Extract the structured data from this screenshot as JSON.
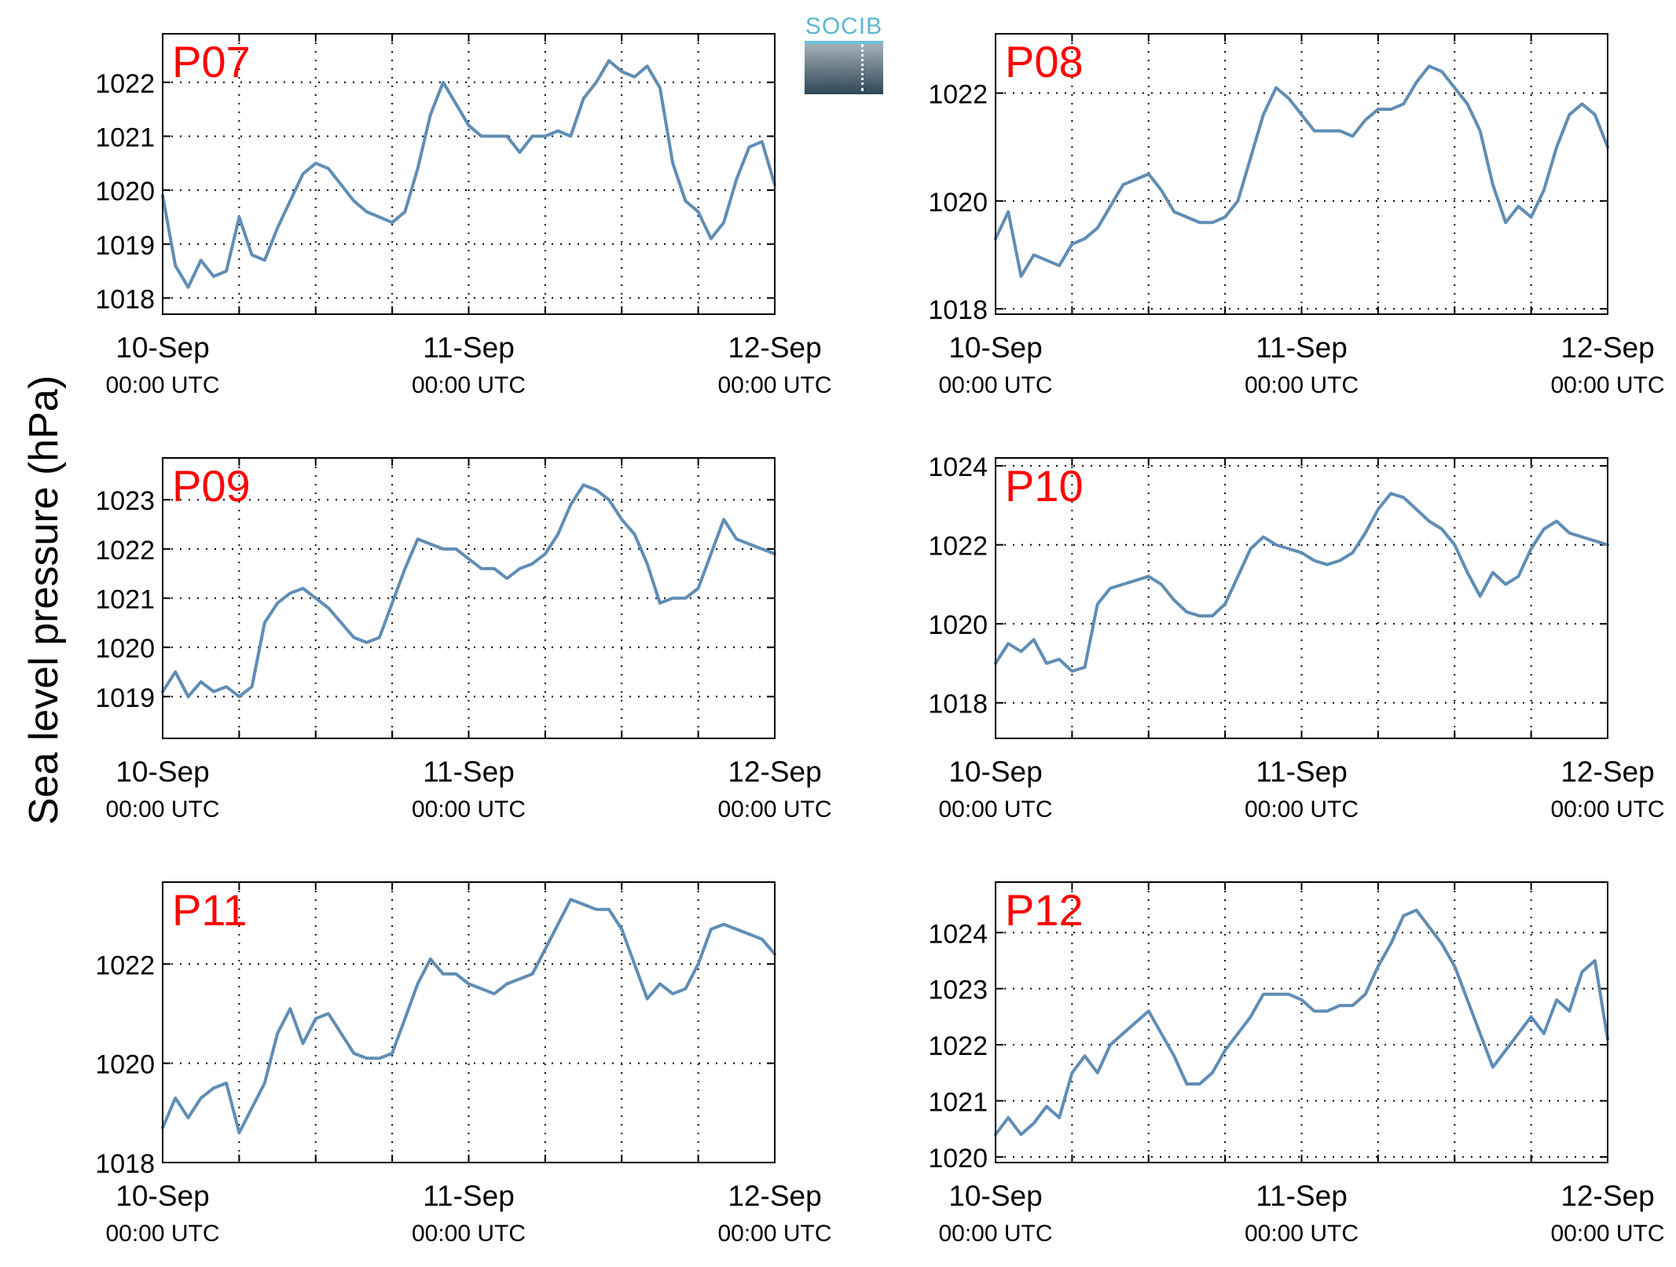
{
  "y_axis_label": "Sea level pressure (hPa)",
  "logo_text": "SOCIB",
  "x_tick_labels": [
    {
      "date": "10-Sep",
      "time": "00:00 UTC"
    },
    {
      "date": "11-Sep",
      "time": "00:00 UTC"
    },
    {
      "date": "12-Sep",
      "time": "00:00 UTC"
    }
  ],
  "colors": {
    "line": "#5f8db5",
    "station_label": "#ff0000",
    "axes": "#000000",
    "grid": "#000000"
  },
  "chart_data": [
    {
      "type": "line",
      "station": "P07",
      "grid": true,
      "xlim": [
        "2016-09-10 00:00",
        "2016-09-12 00:00"
      ],
      "ylim": [
        1017.7,
        1022.9
      ],
      "yticks": [
        1018,
        1019,
        1020,
        1021,
        1022
      ],
      "x_hours": [
        0,
        1,
        2,
        3,
        4,
        5,
        6,
        7,
        8,
        9,
        10,
        11,
        12,
        13,
        14,
        15,
        16,
        17,
        18,
        19,
        20,
        21,
        22,
        23,
        24,
        25,
        26,
        27,
        28,
        29,
        30,
        31,
        32,
        33,
        34,
        35,
        36,
        37,
        38,
        39,
        40,
        41,
        42,
        43,
        44,
        45,
        46,
        47,
        48
      ],
      "values": [
        1019.9,
        1018.6,
        1018.2,
        1018.7,
        1018.4,
        1018.5,
        1019.5,
        1018.8,
        1018.7,
        1019.3,
        1019.8,
        1020.3,
        1020.5,
        1020.4,
        1020.1,
        1019.8,
        1019.6,
        1019.5,
        1019.4,
        1019.6,
        1020.4,
        1021.4,
        1022.0,
        1021.6,
        1021.2,
        1021.0,
        1021.0,
        1021.0,
        1020.7,
        1021.0,
        1021.0,
        1021.1,
        1021.0,
        1021.7,
        1022.0,
        1022.4,
        1022.2,
        1022.1,
        1022.3,
        1021.9,
        1020.5,
        1019.8,
        1019.6,
        1019.1,
        1019.4,
        1020.2,
        1020.8,
        1020.9,
        1020.1
      ]
    },
    {
      "type": "line",
      "station": "P08",
      "grid": true,
      "xlim": [
        "2016-09-10 00:00",
        "2016-09-12 00:00"
      ],
      "ylim": [
        1017.9,
        1023.1
      ],
      "yticks": [
        1018,
        1020,
        1022
      ],
      "x_hours": [
        0,
        1,
        2,
        3,
        4,
        5,
        6,
        7,
        8,
        9,
        10,
        11,
        12,
        13,
        14,
        15,
        16,
        17,
        18,
        19,
        20,
        21,
        22,
        23,
        24,
        25,
        26,
        27,
        28,
        29,
        30,
        31,
        32,
        33,
        34,
        35,
        36,
        37,
        38,
        39,
        40,
        41,
        42,
        43,
        44,
        45,
        46,
        47,
        48
      ],
      "values": [
        1019.3,
        1019.8,
        1018.6,
        1019.0,
        1018.9,
        1018.8,
        1019.2,
        1019.3,
        1019.5,
        1019.9,
        1020.3,
        1020.4,
        1020.5,
        1020.2,
        1019.8,
        1019.7,
        1019.6,
        1019.6,
        1019.7,
        1020.0,
        1020.8,
        1021.6,
        1022.1,
        1021.9,
        1021.6,
        1021.3,
        1021.3,
        1021.3,
        1021.2,
        1021.5,
        1021.7,
        1021.7,
        1021.8,
        1022.2,
        1022.5,
        1022.4,
        1022.1,
        1021.8,
        1021.3,
        1020.3,
        1019.6,
        1019.9,
        1019.7,
        1020.2,
        1021.0,
        1021.6,
        1021.8,
        1021.6,
        1021.0
      ]
    },
    {
      "type": "line",
      "station": "P09",
      "grid": true,
      "xlim": [
        "2016-09-10 00:00",
        "2016-09-12 00:00"
      ],
      "ylim": [
        1018.15,
        1023.85
      ],
      "yticks": [
        1019,
        1020,
        1021,
        1022,
        1023
      ],
      "x_hours": [
        0,
        1,
        2,
        3,
        4,
        5,
        6,
        7,
        8,
        9,
        10,
        11,
        12,
        13,
        14,
        15,
        16,
        17,
        18,
        19,
        20,
        21,
        22,
        23,
        24,
        25,
        26,
        27,
        28,
        29,
        30,
        31,
        32,
        33,
        34,
        35,
        36,
        37,
        38,
        39,
        40,
        41,
        42,
        43,
        44,
        45,
        46,
        47,
        48
      ],
      "values": [
        1019.1,
        1019.5,
        1019.0,
        1019.3,
        1019.1,
        1019.2,
        1019.0,
        1019.2,
        1020.5,
        1020.9,
        1021.1,
        1021.2,
        1021.0,
        1020.8,
        1020.5,
        1020.2,
        1020.1,
        1020.2,
        1020.9,
        1021.6,
        1022.2,
        1022.1,
        1022.0,
        1022.0,
        1021.8,
        1021.6,
        1021.6,
        1021.4,
        1021.6,
        1021.7,
        1021.9,
        1022.3,
        1022.9,
        1023.3,
        1023.2,
        1023.0,
        1022.6,
        1022.3,
        1021.7,
        1020.9,
        1021.0,
        1021.0,
        1021.2,
        1021.9,
        1022.6,
        1022.2,
        1022.1,
        1022.0,
        1021.9
      ]
    },
    {
      "type": "line",
      "station": "P10",
      "grid": true,
      "xlim": [
        "2016-09-10 00:00",
        "2016-09-12 00:00"
      ],
      "ylim": [
        1017.1,
        1024.2
      ],
      "yticks": [
        1018,
        1020,
        1022,
        1024
      ],
      "x_hours": [
        0,
        1,
        2,
        3,
        4,
        5,
        6,
        7,
        8,
        9,
        10,
        11,
        12,
        13,
        14,
        15,
        16,
        17,
        18,
        19,
        20,
        21,
        22,
        23,
        24,
        25,
        26,
        27,
        28,
        29,
        30,
        31,
        32,
        33,
        34,
        35,
        36,
        37,
        38,
        39,
        40,
        41,
        42,
        43,
        44,
        45,
        46,
        47,
        48
      ],
      "values": [
        1019.0,
        1019.5,
        1019.3,
        1019.6,
        1019.0,
        1019.1,
        1018.8,
        1018.9,
        1020.5,
        1020.9,
        1021.0,
        1021.1,
        1021.2,
        1021.0,
        1020.6,
        1020.3,
        1020.2,
        1020.2,
        1020.5,
        1021.2,
        1021.9,
        1022.2,
        1022.0,
        1021.9,
        1021.8,
        1021.6,
        1021.5,
        1021.6,
        1021.8,
        1022.3,
        1022.9,
        1023.3,
        1023.2,
        1022.9,
        1022.6,
        1022.4,
        1022.0,
        1021.3,
        1020.7,
        1021.3,
        1021.0,
        1021.2,
        1021.9,
        1022.4,
        1022.6,
        1022.3,
        1022.2,
        1022.1,
        1022.0
      ]
    },
    {
      "type": "line",
      "station": "P11",
      "grid": true,
      "xlim": [
        "2016-09-10 00:00",
        "2016-09-12 00:00"
      ],
      "ylim": [
        1018.0,
        1023.65
      ],
      "yticks": [
        1018,
        1020,
        1022
      ],
      "x_hours": [
        0,
        1,
        2,
        3,
        4,
        5,
        6,
        7,
        8,
        9,
        10,
        11,
        12,
        13,
        14,
        15,
        16,
        17,
        18,
        19,
        20,
        21,
        22,
        23,
        24,
        25,
        26,
        27,
        28,
        29,
        30,
        31,
        32,
        33,
        34,
        35,
        36,
        37,
        38,
        39,
        40,
        41,
        42,
        43,
        44,
        45,
        46,
        47,
        48
      ],
      "values": [
        1018.7,
        1019.3,
        1018.9,
        1019.3,
        1019.5,
        1019.6,
        1018.6,
        1019.1,
        1019.6,
        1020.6,
        1021.1,
        1020.4,
        1020.9,
        1021.0,
        1020.6,
        1020.2,
        1020.1,
        1020.1,
        1020.2,
        1020.9,
        1021.6,
        1022.1,
        1021.8,
        1021.8,
        1021.6,
        1021.5,
        1021.4,
        1021.6,
        1021.7,
        1021.8,
        1022.3,
        1022.8,
        1023.3,
        1023.2,
        1023.1,
        1023.1,
        1022.7,
        1022.0,
        1021.3,
        1021.6,
        1021.4,
        1021.5,
        1022.0,
        1022.7,
        1022.8,
        1022.7,
        1022.6,
        1022.5,
        1022.2
      ]
    },
    {
      "type": "line",
      "station": "P12",
      "grid": true,
      "xlim": [
        "2016-09-10 00:00",
        "2016-09-12 00:00"
      ],
      "ylim": [
        1019.9,
        1024.9
      ],
      "yticks": [
        1020,
        1021,
        1022,
        1023,
        1024
      ],
      "x_hours": [
        0,
        1,
        2,
        3,
        4,
        5,
        6,
        7,
        8,
        9,
        10,
        11,
        12,
        13,
        14,
        15,
        16,
        17,
        18,
        19,
        20,
        21,
        22,
        23,
        24,
        25,
        26,
        27,
        28,
        29,
        30,
        31,
        32,
        33,
        34,
        35,
        36,
        37,
        38,
        39,
        40,
        41,
        42,
        43,
        44,
        45,
        46,
        47,
        48
      ],
      "values": [
        1020.4,
        1020.7,
        1020.4,
        1020.6,
        1020.9,
        1020.7,
        1021.5,
        1021.8,
        1021.5,
        1022.0,
        1022.2,
        1022.4,
        1022.6,
        1022.2,
        1021.8,
        1021.3,
        1021.3,
        1021.5,
        1021.9,
        1022.2,
        1022.5,
        1022.9,
        1022.9,
        1022.9,
        1022.8,
        1022.6,
        1022.6,
        1022.7,
        1022.7,
        1022.9,
        1023.4,
        1023.8,
        1024.3,
        1024.4,
        1024.1,
        1023.8,
        1023.4,
        1022.8,
        1022.2,
        1021.6,
        1021.9,
        1022.2,
        1022.5,
        1022.2,
        1022.8,
        1022.6,
        1023.3,
        1023.5,
        1022.1
      ]
    }
  ]
}
